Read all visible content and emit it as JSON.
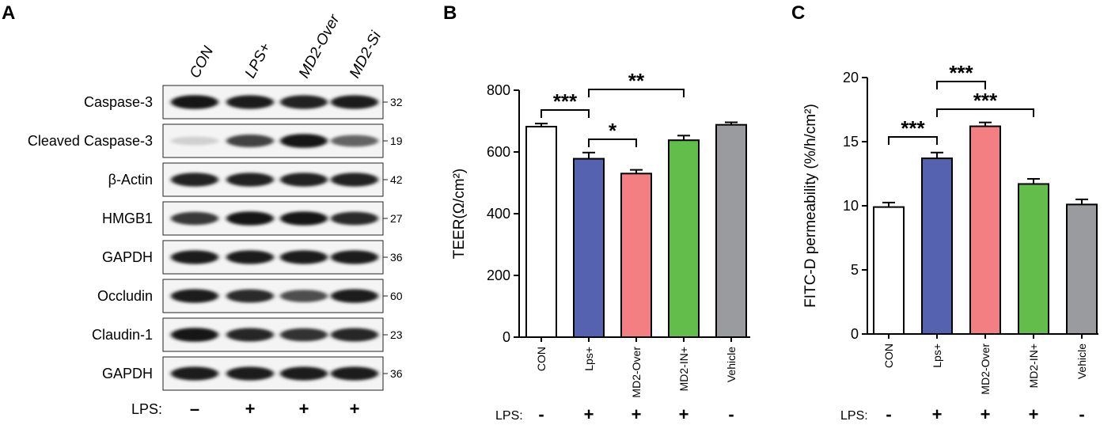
{
  "panels": {
    "a": "A",
    "b": "B",
    "c": "C"
  },
  "blot": {
    "lanes": [
      "CON",
      "LPS+",
      "MD2-Over",
      "MD2-Si"
    ],
    "rows": [
      {
        "protein": "Caspase-3",
        "kda": "32",
        "intensity": [
          0.95,
          0.92,
          0.9,
          0.92
        ]
      },
      {
        "protein": "Cleaved Caspase-3",
        "kda": "19",
        "intensity": [
          0.12,
          0.75,
          0.95,
          0.6
        ]
      },
      {
        "protein": "β-Actin",
        "kda": "42",
        "intensity": [
          0.9,
          0.9,
          0.9,
          0.9
        ]
      },
      {
        "protein": "HMGB1",
        "kda": "27",
        "intensity": [
          0.8,
          0.95,
          0.95,
          0.85
        ]
      },
      {
        "protein": "GAPDH",
        "kda": "36",
        "intensity": [
          0.92,
          0.92,
          0.92,
          0.92
        ]
      },
      {
        "protein": "Occludin",
        "kda": "60",
        "intensity": [
          0.92,
          0.85,
          0.7,
          0.92
        ]
      },
      {
        "protein": "Claudin-1",
        "kda": "23",
        "intensity": [
          0.95,
          0.88,
          0.82,
          0.88
        ]
      },
      {
        "protein": "GAPDH",
        "kda": "36",
        "intensity": [
          0.92,
          0.92,
          0.92,
          0.92
        ]
      }
    ],
    "lps_label": "LPS:",
    "lps_signs": [
      "–",
      "+",
      "+",
      "+"
    ]
  },
  "chart_data": [
    {
      "type": "bar",
      "categories": [
        "CON",
        "Lps+",
        "MD2-Over",
        "MD2-IN+",
        "Vehicle"
      ],
      "values": [
        682,
        578,
        530,
        638,
        688
      ],
      "errors": [
        10,
        20,
        12,
        15,
        8
      ],
      "colors": [
        "#ffffff",
        "#5562b0",
        "#f47f82",
        "#62bd4a",
        "#9a9b9f"
      ],
      "ylabel": "TEER(Ω/cm²)",
      "ylim": [
        0,
        800
      ],
      "yticks": [
        0,
        200,
        400,
        600,
        800
      ],
      "lps_label": "LPS:",
      "lps_signs": [
        "-",
        "+",
        "+",
        "+",
        "-"
      ],
      "significance": [
        {
          "from": 0,
          "to": 1,
          "label": "***"
        },
        {
          "from": 1,
          "to": 3,
          "label": "**"
        },
        {
          "from": 1,
          "to": 2,
          "label": "*"
        }
      ]
    },
    {
      "type": "bar",
      "categories": [
        "CON",
        "Lps+",
        "MD2-Over",
        "MD2-IN+",
        "Vehicle"
      ],
      "values": [
        9.9,
        13.7,
        16.2,
        11.7,
        10.1
      ],
      "errors": [
        0.35,
        0.45,
        0.3,
        0.4,
        0.4
      ],
      "colors": [
        "#ffffff",
        "#5562b0",
        "#f47f82",
        "#62bd4a",
        "#9a9b9f"
      ],
      "ylabel": "FITC-D permeability (%/h/cm²)",
      "ylim": [
        0,
        20
      ],
      "yticks": [
        0,
        5,
        10,
        15,
        20
      ],
      "lps_label": "LPS:",
      "lps_signs": [
        "-",
        "+",
        "+",
        "+",
        "-"
      ],
      "significance": [
        {
          "from": 0,
          "to": 1,
          "label": "***"
        },
        {
          "from": 1,
          "to": 2,
          "label": "***"
        },
        {
          "from": 1,
          "to": 3,
          "label": "***"
        }
      ]
    }
  ]
}
